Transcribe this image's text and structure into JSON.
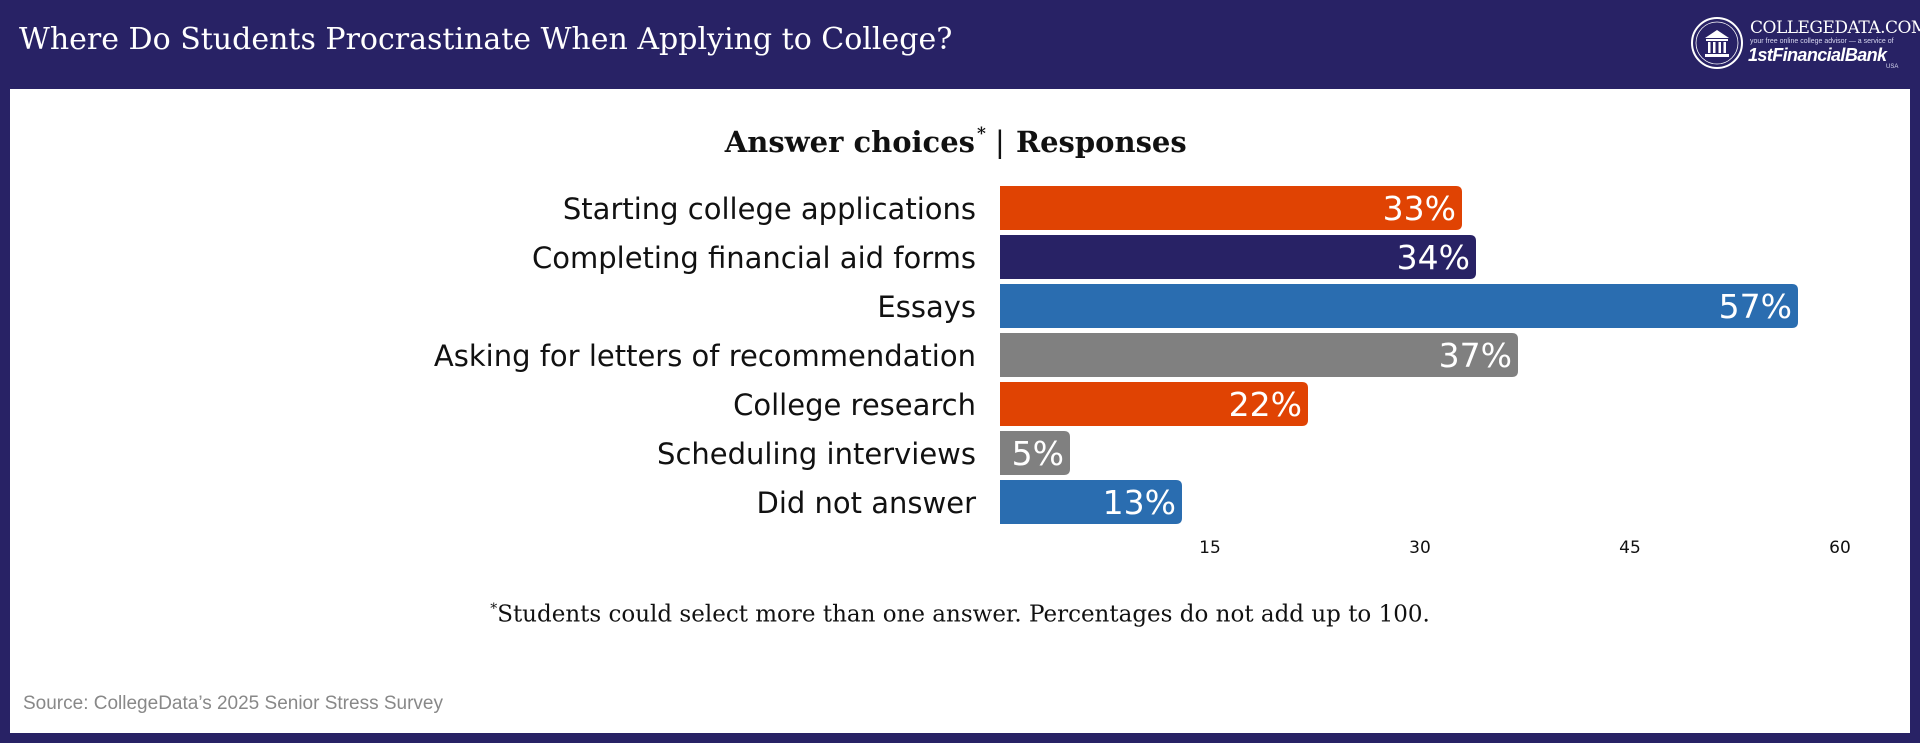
{
  "header": {
    "title": "Where Do Students Procrastinate When Applying to College?",
    "background": "#282265"
  },
  "logo": {
    "name": "COLLEGEDATA.COM",
    "tagline": "your free online college advisor — a service of",
    "bank": "1stFinancialBank",
    "country": "USA"
  },
  "chart_data": {
    "type": "bar",
    "orientation": "horizontal",
    "column_headers": {
      "answers": "Answer choices",
      "answers_mark": "*",
      "separator": "|",
      "responses": "Responses"
    },
    "categories": [
      "Starting college applications",
      "Completing financial aid forms",
      "Essays",
      "Asking for letters of recommendation",
      "College research",
      "Scheduling interviews",
      "Did not answer"
    ],
    "values": [
      33,
      34,
      57,
      37,
      22,
      5,
      13
    ],
    "value_labels": [
      "33%",
      "34%",
      "57%",
      "37%",
      "22%",
      "5%",
      "13%"
    ],
    "bar_colors": [
      "#e04303",
      "#282265",
      "#2a6db0",
      "#808080",
      "#e04303",
      "#808080",
      "#2a6db0"
    ],
    "xlim": [
      0,
      60
    ],
    "x_ticks": [
      15,
      30,
      45,
      60
    ],
    "grid": false,
    "legend": "none"
  },
  "footnote": {
    "mark": "*",
    "text": "Students could select more than one answer. Percentages do not add up to 100."
  },
  "source": "Source: CollegeData’s 2025 Senior Stress Survey"
}
